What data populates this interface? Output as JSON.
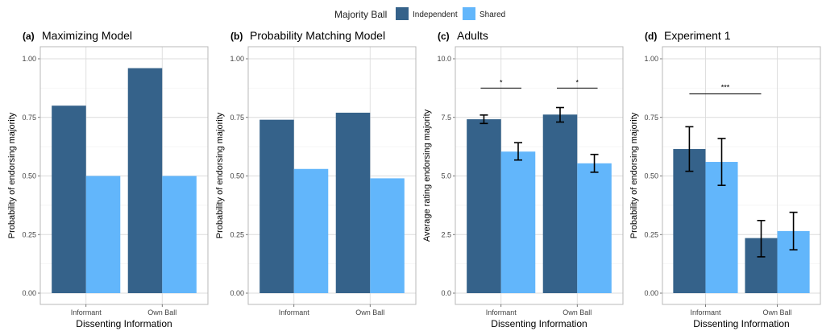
{
  "legend": {
    "title": "Majority Ball",
    "items": [
      {
        "label": "Independent",
        "color": "#35628a"
      },
      {
        "label": "Shared",
        "color": "#62b6fb"
      }
    ]
  },
  "chart_data": [
    {
      "type": "bar",
      "panel": "(a)",
      "title": "Maximizing Model",
      "xlabel": "Dissenting Information",
      "ylabel": "Probability of endorsing majority",
      "categories": [
        "Informant",
        "Own Ball"
      ],
      "ylim": [
        0,
        1.0
      ],
      "yticks": [
        0,
        0.25,
        0.5,
        0.75,
        1.0
      ],
      "ytick_labels": [
        "0.00",
        "0.25",
        "0.50",
        "0.75",
        "1.00"
      ],
      "grid": true,
      "series": [
        {
          "name": "Independent",
          "values": [
            0.8,
            0.96
          ]
        },
        {
          "name": "Shared",
          "values": [
            0.5,
            0.5
          ]
        }
      ]
    },
    {
      "type": "bar",
      "panel": "(b)",
      "title": "Probability Matching Model",
      "xlabel": "",
      "ylabel": "Probability of endorsing majority",
      "categories": [
        "Informant",
        "Own Ball"
      ],
      "ylim": [
        0,
        1.0
      ],
      "yticks": [
        0,
        0.25,
        0.5,
        0.75,
        1.0
      ],
      "ytick_labels": [
        "0.00",
        "0.25",
        "0.50",
        "0.75",
        "1.00"
      ],
      "grid": true,
      "series": [
        {
          "name": "Independent",
          "values": [
            0.74,
            0.77
          ]
        },
        {
          "name": "Shared",
          "values": [
            0.53,
            0.49
          ]
        }
      ]
    },
    {
      "type": "bar",
      "panel": "(c)",
      "title": "Adults",
      "xlabel": "Dissenting Information",
      "ylabel": "Average rating endorsing majority",
      "categories": [
        "Informant",
        "Own Ball"
      ],
      "ylim": [
        0,
        10.0
      ],
      "yticks": [
        0,
        2.5,
        5.0,
        7.5,
        10.0
      ],
      "ytick_labels": [
        "0.0",
        "2.5",
        "5.0",
        "7.5",
        "10.0"
      ],
      "grid": true,
      "series": [
        {
          "name": "Independent",
          "values": [
            7.42,
            7.62
          ],
          "err_low": [
            7.24,
            7.3
          ],
          "err_high": [
            7.6,
            7.92
          ]
        },
        {
          "name": "Shared",
          "values": [
            6.04,
            5.54
          ],
          "err_low": [
            5.68,
            5.16
          ],
          "err_high": [
            6.42,
            5.92
          ]
        }
      ],
      "annotations": [
        {
          "text": "*",
          "category": 0
        },
        {
          "text": "*",
          "category": 1
        }
      ]
    },
    {
      "type": "bar",
      "panel": "(d)",
      "title": "Experiment 1",
      "xlabel": "Dissenting Information",
      "ylabel": "Probability of endorsing majority",
      "categories": [
        "Informant",
        "Own Ball"
      ],
      "ylim": [
        0,
        1.0
      ],
      "yticks": [
        0,
        0.25,
        0.5,
        0.75,
        1.0
      ],
      "ytick_labels": [
        "0.00",
        "0.25",
        "0.50",
        "0.75",
        "1.00"
      ],
      "grid": true,
      "series": [
        {
          "name": "Independent",
          "values": [
            0.615,
            0.235
          ],
          "err_low": [
            0.52,
            0.155
          ],
          "err_high": [
            0.71,
            0.31
          ]
        },
        {
          "name": "Shared",
          "values": [
            0.56,
            0.265
          ],
          "err_low": [
            0.46,
            0.185
          ],
          "err_high": [
            0.66,
            0.345
          ]
        }
      ],
      "annotations": [
        {
          "text": "***",
          "between": "Independent"
        }
      ]
    }
  ]
}
